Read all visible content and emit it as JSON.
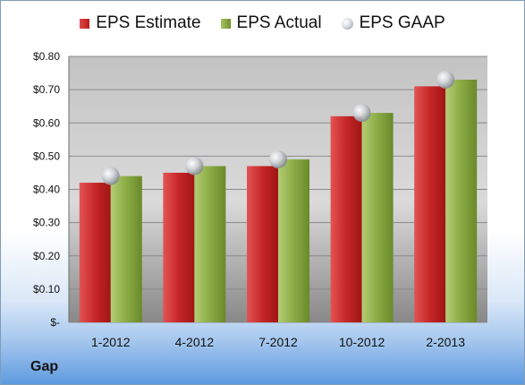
{
  "legend": {
    "estimate": "EPS Estimate",
    "actual": "EPS Actual",
    "gaap": "EPS GAAP"
  },
  "company": "Gap",
  "colors": {
    "estimate": "#c62828",
    "actual": "#8aab44",
    "gaap": "#c0c4ca"
  },
  "chart_data": {
    "type": "bar",
    "categories": [
      "1-2012",
      "4-2012",
      "7-2012",
      "10-2012",
      "2-2013"
    ],
    "series": [
      {
        "name": "EPS Estimate",
        "values": [
          0.42,
          0.45,
          0.47,
          0.62,
          0.71
        ]
      },
      {
        "name": "EPS Actual",
        "values": [
          0.44,
          0.47,
          0.49,
          0.63,
          0.73
        ]
      },
      {
        "name": "EPS GAAP",
        "values": [
          0.44,
          0.47,
          0.49,
          0.63,
          0.73
        ]
      }
    ],
    "yticks": [
      "$-",
      "$0.10",
      "$0.20",
      "$0.30",
      "$0.40",
      "$0.50",
      "$0.60",
      "$0.70",
      "$0.80"
    ],
    "ylim": [
      0,
      0.8
    ],
    "grid": true,
    "legend_position": "top"
  }
}
